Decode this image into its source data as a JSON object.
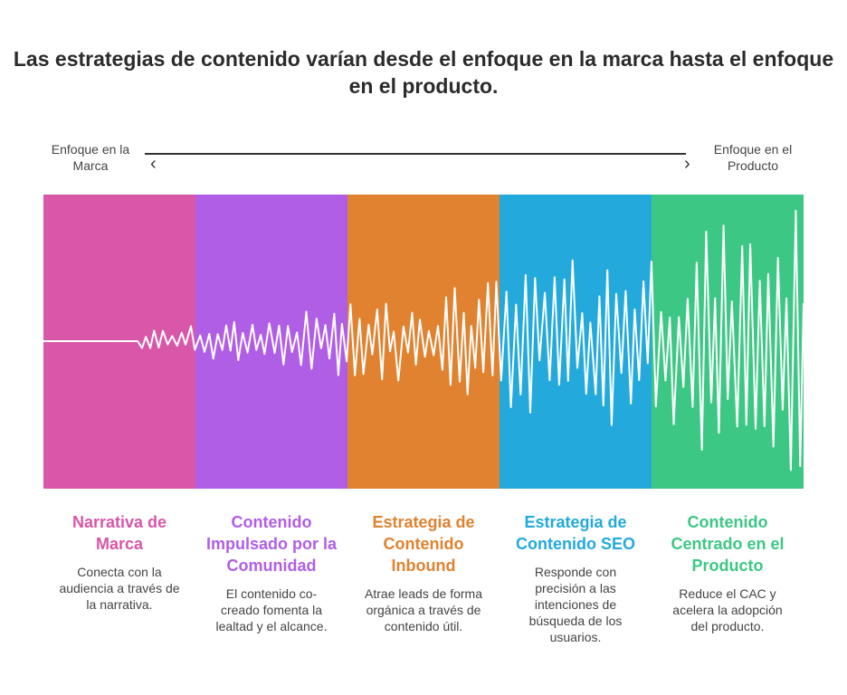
{
  "title": "Las estrategias de contenido varían desde el enfoque en la marca hasta el enfoque en el producto.",
  "axis": {
    "left_label": "Enfoque en la Marca",
    "right_label": "Enfoque en el Producto"
  },
  "columns": [
    {
      "title": "Narrativa de Marca",
      "description": "Conecta con la audiencia a través de la narrativa.",
      "color": "#d957a8"
    },
    {
      "title": "Contenido Impulsado por la Comunidad",
      "description": "El contenido co-creado fomenta la lealtad y el alcance.",
      "color": "#b05ee6"
    },
    {
      "title": "Estrategia de Contenido Inbound",
      "description": "Atrae leads de forma orgánica a través de contenido útil.",
      "color": "#e0822f"
    },
    {
      "title": "Estrategia de Contenido SEO",
      "description": "Responde con precisión a las intenciones de búsqueda de los usuarios.",
      "color": "#24a9dc"
    },
    {
      "title": "Contenido Centrado en el Producto",
      "description": "Reduce el CAC y acelera la adopción del producto.",
      "color": "#3dc784"
    }
  ]
}
